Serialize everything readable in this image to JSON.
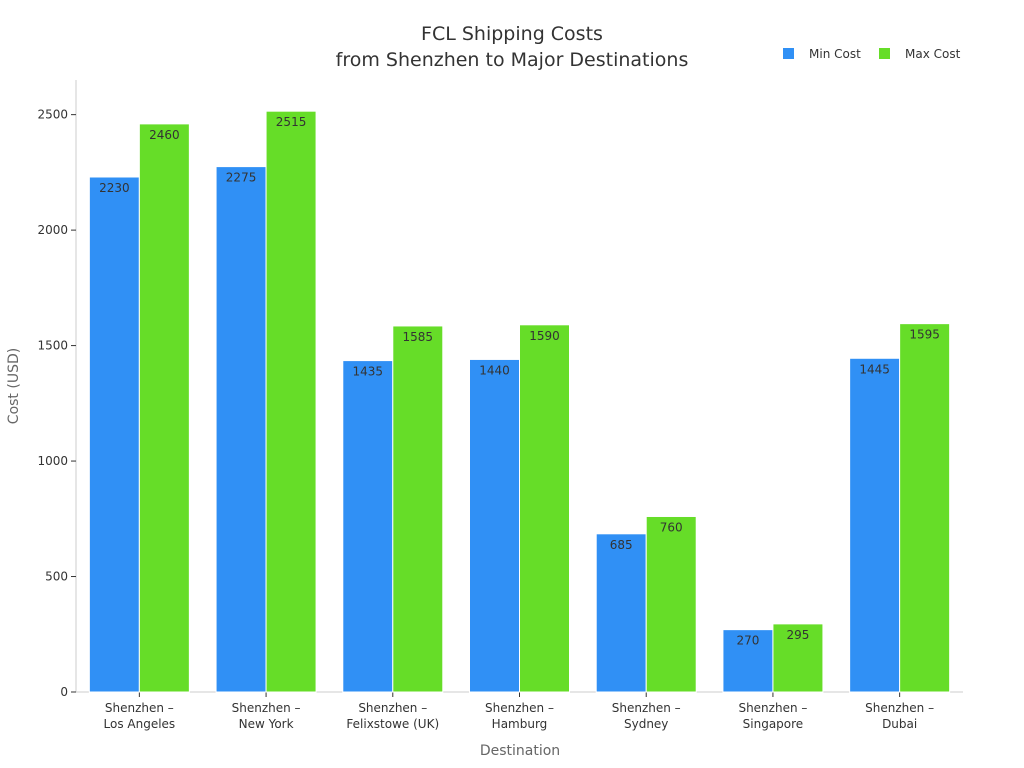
{
  "chart_data": {
    "type": "bar",
    "title": [
      "FCL Shipping Costs",
      "from Shenzhen to Major Destinations"
    ],
    "xlabel": "Destination",
    "ylabel": "Cost (USD)",
    "ylim": [
      0,
      2650
    ],
    "yticks": [
      0,
      500,
      1000,
      1500,
      2000,
      2500
    ],
    "grid": false,
    "legend_position": "top-right",
    "categories": [
      [
        "Shenzhen –",
        "Los Angeles"
      ],
      [
        "Shenzhen –",
        "New York"
      ],
      [
        "Shenzhen –",
        "Felixstowe (UK)"
      ],
      [
        "Shenzhen –",
        "Hamburg"
      ],
      [
        "Shenzhen –",
        "Sydney"
      ],
      [
        "Shenzhen –",
        "Singapore"
      ],
      [
        "Shenzhen –",
        "Dubai"
      ]
    ],
    "series": [
      {
        "name": "Min Cost",
        "color": "#3090f5",
        "values": [
          2230,
          2275,
          1435,
          1440,
          685,
          270,
          1445
        ]
      },
      {
        "name": "Max Cost",
        "color": "#66dd28",
        "values": [
          2460,
          2515,
          1585,
          1590,
          760,
          295,
          1595
        ]
      }
    ]
  }
}
